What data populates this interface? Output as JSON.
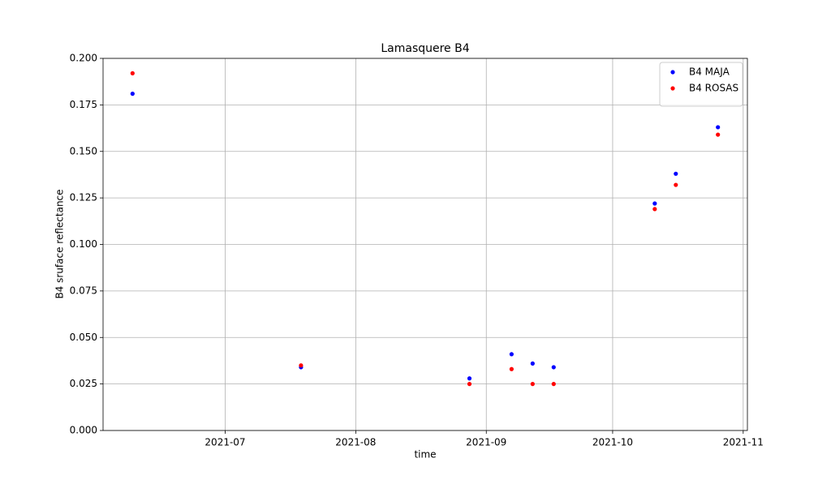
{
  "chart_data": {
    "type": "scatter",
    "title": "Lamasquere B4",
    "xlabel": "time",
    "ylabel": "B4 sruface reflectance",
    "x": [
      "2021-06-09",
      "2021-07-19",
      "2021-08-28",
      "2021-09-07",
      "2021-09-12",
      "2021-09-17",
      "2021-10-11",
      "2021-10-16",
      "2021-10-26"
    ],
    "series": [
      {
        "name": "B4 MAJA",
        "color": "#0000ff",
        "values": [
          0.181,
          0.034,
          0.028,
          0.041,
          0.036,
          0.034,
          0.122,
          0.138,
          0.163
        ]
      },
      {
        "name": "B4 ROSAS",
        "color": "#ff0000",
        "values": [
          0.192,
          0.035,
          0.025,
          0.033,
          0.025,
          0.025,
          0.119,
          0.132,
          0.159
        ]
      }
    ],
    "xlim": [
      "2021-06-02",
      "2021-11-02"
    ],
    "xticks": [
      {
        "value": "2021-07-01",
        "label": "2021-07"
      },
      {
        "value": "2021-08-01",
        "label": "2021-08"
      },
      {
        "value": "2021-09-01",
        "label": "2021-09"
      },
      {
        "value": "2021-10-01",
        "label": "2021-10"
      },
      {
        "value": "2021-11-01",
        "label": "2021-11"
      }
    ],
    "ylim": [
      0,
      0.2
    ],
    "yticks": [
      {
        "value": 0,
        "label": "0.000"
      },
      {
        "value": 0.025,
        "label": "0.025"
      },
      {
        "value": 0.05,
        "label": "0.050"
      },
      {
        "value": 0.075,
        "label": "0.075"
      },
      {
        "value": 0.1,
        "label": "0.100"
      },
      {
        "value": 0.125,
        "label": "0.125"
      },
      {
        "value": 0.15,
        "label": "0.150"
      },
      {
        "value": 0.175,
        "label": "0.175"
      },
      {
        "value": 0.2,
        "label": "0.200"
      }
    ],
    "grid": true,
    "legend": "upper right"
  }
}
